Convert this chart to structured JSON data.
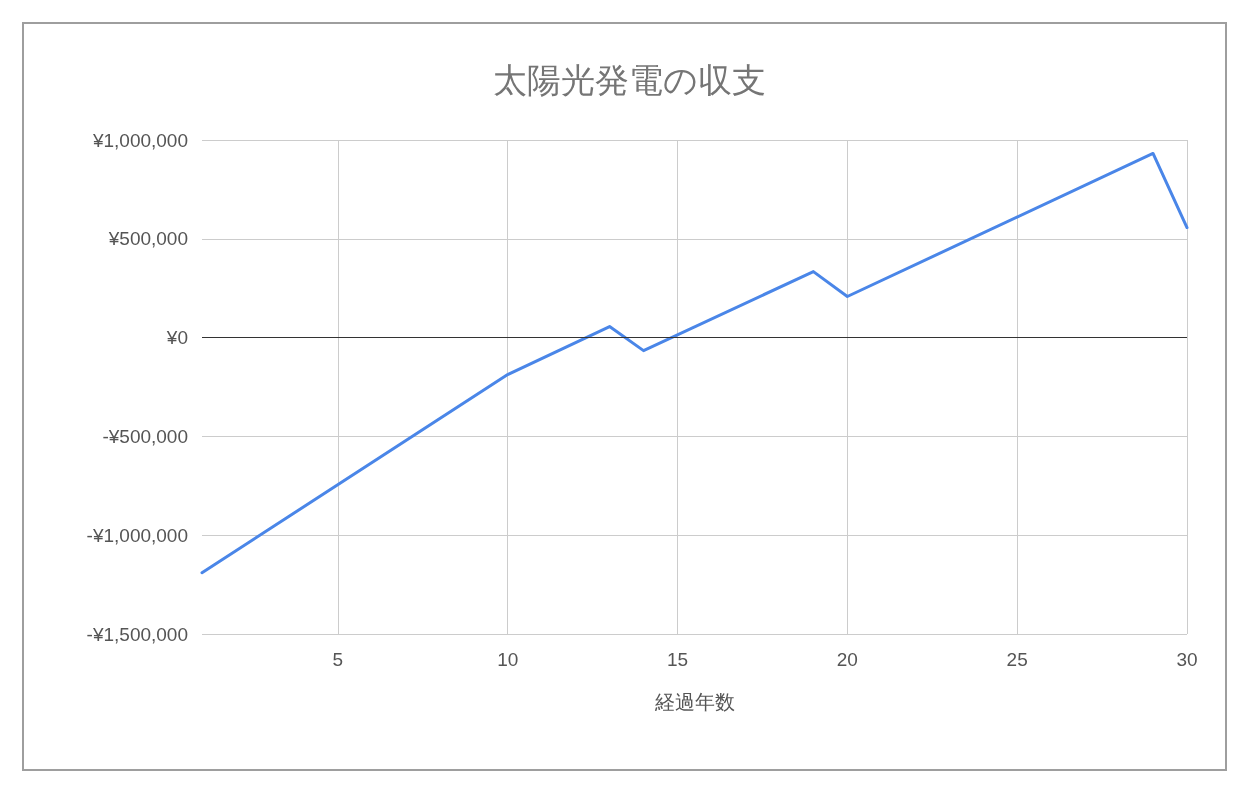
{
  "chart_data": {
    "type": "line",
    "title": "太陽光発電の収支",
    "xlabel": "経過年数",
    "x": [
      1,
      10,
      13,
      14,
      19,
      20,
      29,
      30
    ],
    "series": [
      {
        "color": "#4a86e8",
        "values": [
          -1190000,
          -187000,
          56000,
          -66000,
          334000,
          208000,
          932000,
          557000
        ]
      }
    ],
    "xlim": [
      1,
      30
    ],
    "xticks": [
      5,
      10,
      15,
      20,
      25,
      30
    ],
    "ylim": [
      -1500000,
      1000000
    ],
    "yticks": [
      {
        "value": -1500000,
        "label": "-¥1,500,000"
      },
      {
        "value": -1000000,
        "label": "-¥1,000,000"
      },
      {
        "value": -500000,
        "label": "-¥500,000"
      },
      {
        "value": 0,
        "label": "¥0"
      },
      {
        "value": 500000,
        "label": "¥500,000"
      },
      {
        "value": 1000000,
        "label": "¥1,000,000"
      }
    ],
    "ref_lines": [
      {
        "axis": "y",
        "value": 0,
        "color": "#333333"
      }
    ],
    "grid": true,
    "marker": "none",
    "line_style": "solid"
  }
}
